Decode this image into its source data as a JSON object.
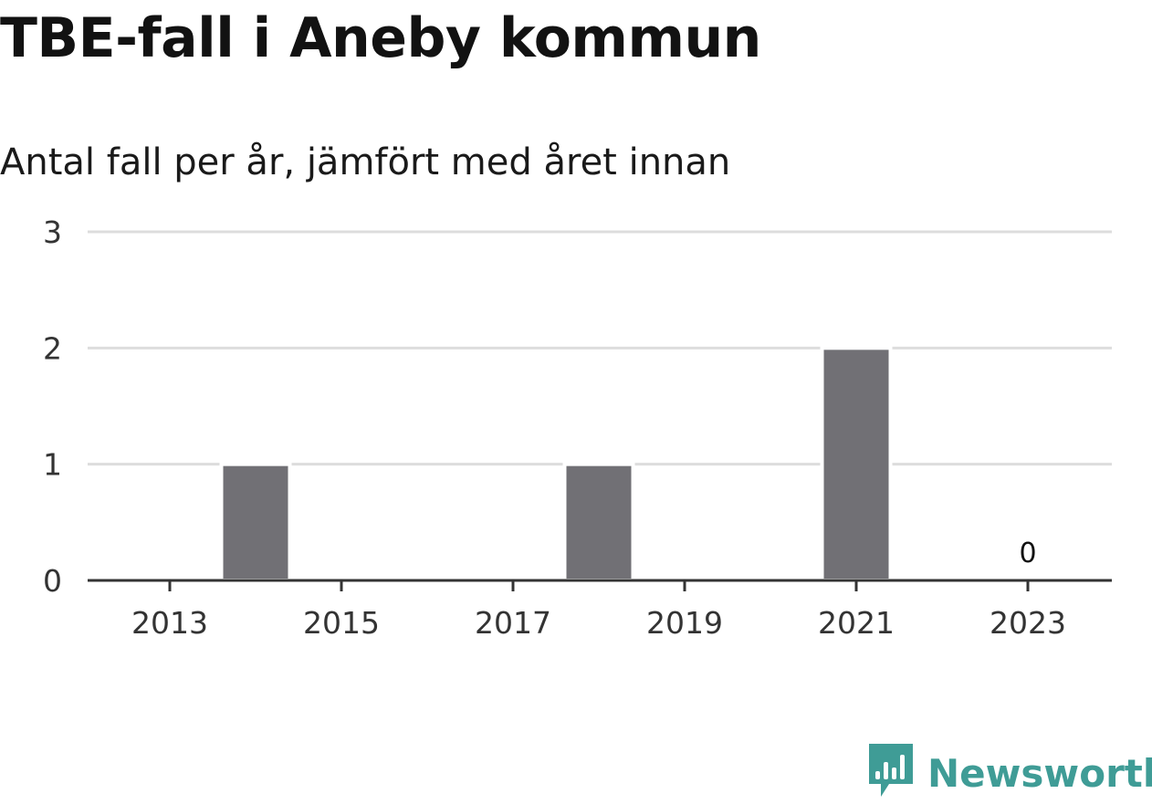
{
  "header": {
    "title": "TBE-fall i Aneby kommun",
    "subtitle": "Antal fall per år, jämfört med året innan"
  },
  "brand": {
    "name": "Newsworthy",
    "color": "#3f9c96",
    "icon": "bar-chart-speech-bubble-icon"
  },
  "colors": {
    "bar": "#717075",
    "grid": "#dddddd",
    "axis": "#333333"
  },
  "chart_data": {
    "type": "bar",
    "title": "TBE-fall i Aneby kommun",
    "subtitle": "Antal fall per år, jämfört med året innan",
    "xlabel": "",
    "ylabel": "",
    "categories": [
      "2013",
      "2014",
      "2015",
      "2016",
      "2017",
      "2018",
      "2019",
      "2020",
      "2021",
      "2022",
      "2023"
    ],
    "values": [
      0,
      1,
      0,
      0,
      0,
      1,
      0,
      0,
      2,
      0,
      0
    ],
    "x_ticks": [
      "2013",
      "2015",
      "2017",
      "2019",
      "2021",
      "2023"
    ],
    "y_ticks": [
      "0",
      "1",
      "2",
      "3"
    ],
    "ylim": [
      0,
      3
    ],
    "grid": true,
    "legend": "none",
    "annotations": [
      {
        "category": "2023",
        "text": "0"
      }
    ]
  }
}
